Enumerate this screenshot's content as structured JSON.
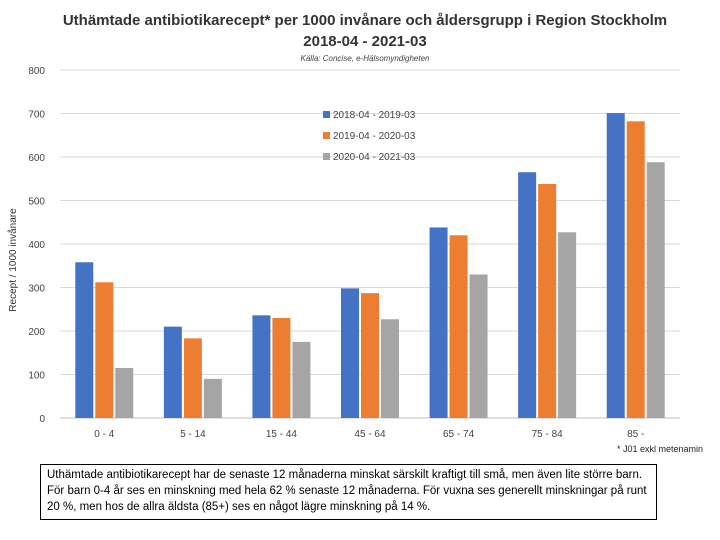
{
  "chart_data": {
    "type": "bar",
    "title": "Uthämtade antibiotikarecept* per 1000 invånare och åldersgrupp i Region Stockholm 2018-04 - 2021-03",
    "subtitle": "Källa: Concise, e-Hälsomyndigheten",
    "xlabel": "",
    "ylabel": "Recept / 1000 invånare",
    "ylim": [
      0,
      800
    ],
    "yticks": [
      0,
      100,
      200,
      300,
      400,
      500,
      600,
      700,
      800
    ],
    "grid": true,
    "legend_position": "top-middle",
    "categories": [
      "0 - 4",
      "5 - 14",
      "15 - 44",
      "45 - 64",
      "65 - 74",
      "75 - 84",
      "85 -"
    ],
    "series": [
      {
        "name": "2018-04 - 2019-03",
        "color": "#4472C4",
        "values": [
          358,
          210,
          236,
          298,
          438,
          565,
          701
        ]
      },
      {
        "name": "2019-04 - 2020-03",
        "color": "#ED7D31",
        "values": [
          312,
          183,
          230,
          287,
          420,
          538,
          682
        ]
      },
      {
        "name": "2020-04 - 2021-03",
        "color": "#A5A5A5",
        "values": [
          115,
          90,
          175,
          227,
          330,
          427,
          588
        ]
      }
    ]
  },
  "footnote": "* J01 exkl metenamin",
  "summary": "Uthämtade antibiotikarecept har de senaste 12 månaderna minskat särskilt kraftigt till små, men även lite större barn. För barn 0-4 år ses en minskning med hela 62 % senaste 12 månaderna. För vuxna ses generellt minskningar på runt 20 %, men hos de allra äldsta (85+) ses en något lägre minskning på 14 %."
}
